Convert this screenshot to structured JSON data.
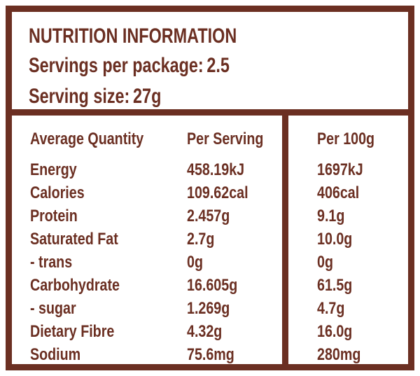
{
  "header": {
    "title": "NUTRITION INFORMATION",
    "servings_label": "Servings per package:",
    "servings_value": "2.5",
    "serving_size_label": "Serving size:",
    "serving_size_value": "27g"
  },
  "table": {
    "headers": [
      "Average Quantity",
      "Per Serving",
      "Per 100g"
    ],
    "rows": [
      {
        "name": "Energy",
        "per_serving": "458.19kJ",
        "per_100g": "1697kJ"
      },
      {
        "name": "Calories",
        "per_serving": "109.62cal",
        "per_100g": "406cal"
      },
      {
        "name": "Protein",
        "per_serving": "2.457g",
        "per_100g": "9.1g"
      },
      {
        "name": "Saturated Fat",
        "per_serving": "2.7g",
        "per_100g": "10.0g"
      },
      {
        "name": "- trans",
        "per_serving": "0g",
        "per_100g": "0g"
      },
      {
        "name": "Carbohydrate",
        "per_serving": "16.605g",
        "per_100g": "61.5g"
      },
      {
        "name": "- sugar",
        "per_serving": "1.269g",
        "per_100g": "4.7g"
      },
      {
        "name": "Dietary Fibre",
        "per_serving": "4.32g",
        "per_100g": "16.0g"
      },
      {
        "name": "Sodium",
        "per_serving": "75.6mg",
        "per_100g": "280mg"
      }
    ]
  },
  "colors": {
    "accent": "#6b2f22",
    "background": "#ffffff"
  }
}
